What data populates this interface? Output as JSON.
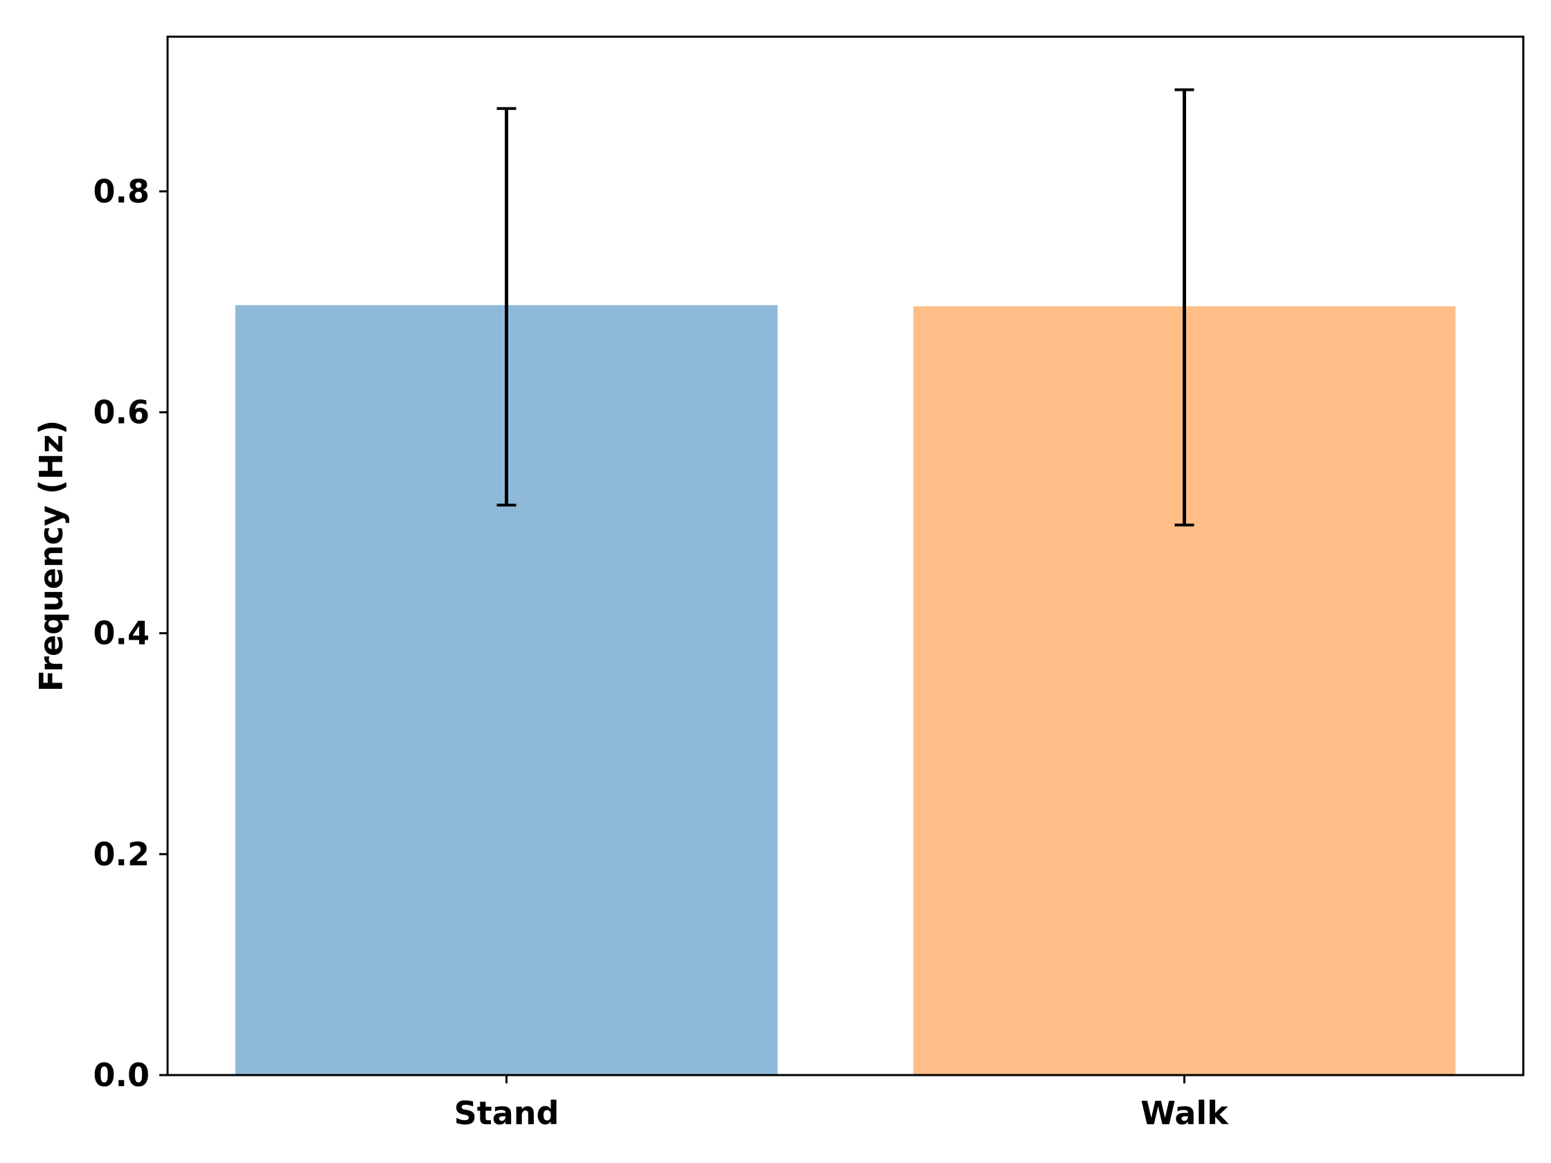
{
  "chart_data": {
    "type": "bar",
    "categories": [
      "Stand",
      "Walk"
    ],
    "values": [
      0.697,
      0.696
    ],
    "error_low": [
      0.516,
      0.498
    ],
    "error_high": [
      0.875,
      0.892
    ],
    "colors": [
      "#8fb9d9",
      "#ffbe87"
    ],
    "xlabel": "",
    "ylabel": "Frequency (Hz)",
    "ylim": [
      0,
      0.94
    ],
    "yticks": [
      0.0,
      0.2,
      0.4,
      0.6,
      0.8
    ],
    "ytick_labels": [
      "0.0",
      "0.2",
      "0.4",
      "0.6",
      "0.8"
    ],
    "grid": false,
    "legend": "none"
  }
}
